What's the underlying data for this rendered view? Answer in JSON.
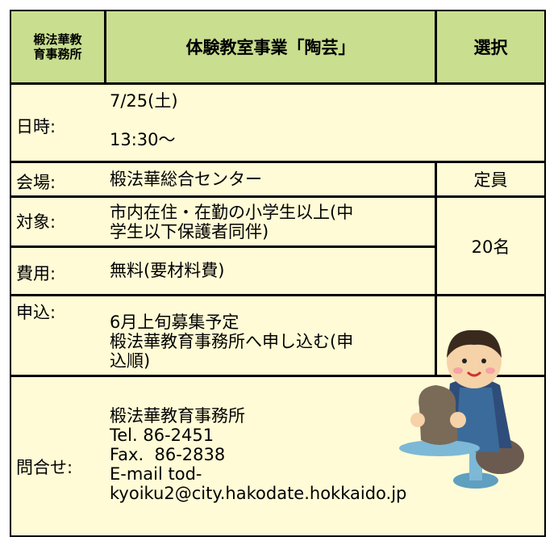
{
  "header": {
    "org": [
      "椴法華教",
      "育事務所"
    ],
    "title": "体験教室事業「陶芸」",
    "select": "選択"
  },
  "rows": [
    {
      "label": "日時:",
      "lines": [
        "7/25(土)",
        "13:30～"
      ]
    },
    {
      "label": "会場:",
      "lines": [
        "椴法華総合センター"
      ]
    },
    {
      "label": "対象:",
      "lines": [
        "市内在住・在勤の小学生以上(中",
        "学生以下保護者同伴)"
      ]
    },
    {
      "label": "費用:",
      "lines": [
        "無料(要材料費)"
      ]
    },
    {
      "label": "申込:",
      "lines": [
        "6月上旬募集予定",
        "椴法華教育事務所へ申し込む(申",
        "込順)"
      ]
    },
    {
      "label": "問合せ:",
      "lines": [
        "椴法華教育事務所",
        "Tel. 86-2451",
        "Fax.  86-2838",
        "E-mail tod-",
        "kyoiku2@city.hakodate.hokkaido.jp"
      ]
    }
  ],
  "capacity": {
    "label": "定員",
    "value": "20名"
  }
}
